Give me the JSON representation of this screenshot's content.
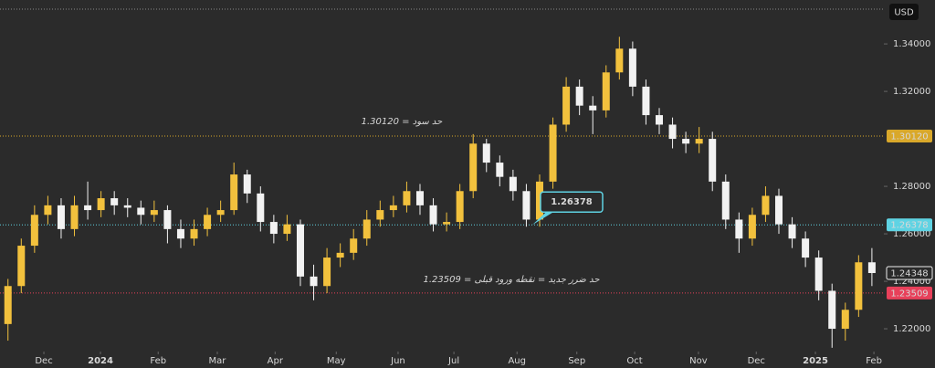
{
  "chart_data": {
    "type": "candlestick",
    "currency": "USD",
    "x": [
      0,
      1,
      2,
      3,
      4,
      5,
      6,
      7,
      8,
      9,
      10,
      11,
      12,
      13,
      14,
      15,
      16,
      17,
      18,
      19,
      20,
      21,
      22,
      23,
      24,
      25,
      26,
      27,
      28,
      29,
      30,
      31,
      32,
      33,
      34,
      35,
      36,
      37,
      38,
      39,
      40,
      41,
      42,
      43,
      44,
      45,
      46,
      47,
      48,
      49,
      50,
      51,
      52,
      53,
      54,
      55,
      56,
      57,
      58,
      59,
      60,
      61,
      62,
      63,
      64,
      65
    ],
    "open": [
      1.222,
      1.238,
      1.255,
      1.268,
      1.272,
      1.262,
      1.272,
      1.27,
      1.275,
      1.272,
      1.271,
      1.268,
      1.27,
      1.262,
      1.258,
      1.262,
      1.268,
      1.27,
      1.285,
      1.277,
      1.265,
      1.26,
      1.264,
      1.242,
      1.238,
      1.25,
      1.252,
      1.258,
      1.266,
      1.27,
      1.272,
      1.278,
      1.272,
      1.264,
      1.265,
      1.278,
      1.298,
      1.29,
      1.284,
      1.278,
      1.266,
      1.282,
      1.306,
      1.322,
      1.314,
      1.312,
      1.328,
      1.338,
      1.322,
      1.31,
      1.306,
      1.3,
      1.298,
      1.3,
      1.282,
      1.266,
      1.258,
      1.268,
      1.276,
      1.264,
      1.258,
      1.25,
      1.236,
      1.22,
      1.228,
      1.248
    ],
    "high": [
      1.241,
      1.258,
      1.272,
      1.276,
      1.275,
      1.276,
      1.282,
      1.278,
      1.278,
      1.275,
      1.274,
      1.274,
      1.272,
      1.266,
      1.266,
      1.271,
      1.274,
      1.29,
      1.287,
      1.28,
      1.268,
      1.268,
      1.266,
      1.247,
      1.254,
      1.256,
      1.262,
      1.27,
      1.274,
      1.276,
      1.282,
      1.281,
      1.275,
      1.269,
      1.281,
      1.302,
      1.3,
      1.293,
      1.287,
      1.281,
      1.285,
      1.309,
      1.326,
      1.325,
      1.318,
      1.331,
      1.343,
      1.341,
      1.325,
      1.313,
      1.309,
      1.303,
      1.305,
      1.303,
      1.285,
      1.269,
      1.271,
      1.28,
      1.279,
      1.267,
      1.261,
      1.253,
      1.239,
      1.231,
      1.251,
      1.254
    ],
    "low": [
      1.215,
      1.235,
      1.252,
      1.264,
      1.258,
      1.259,
      1.266,
      1.267,
      1.268,
      1.267,
      1.264,
      1.265,
      1.256,
      1.254,
      1.255,
      1.259,
      1.265,
      1.268,
      1.273,
      1.261,
      1.256,
      1.257,
      1.238,
      1.232,
      1.235,
      1.246,
      1.249,
      1.255,
      1.263,
      1.267,
      1.269,
      1.268,
      1.261,
      1.261,
      1.262,
      1.275,
      1.286,
      1.28,
      1.274,
      1.263,
      1.263,
      1.279,
      1.303,
      1.31,
      1.302,
      1.309,
      1.325,
      1.318,
      1.306,
      1.302,
      1.296,
      1.294,
      1.294,
      1.278,
      1.262,
      1.252,
      1.255,
      1.265,
      1.26,
      1.254,
      1.246,
      1.232,
      1.212,
      1.215,
      1.225,
      1.238
    ],
    "close": [
      1.238,
      1.255,
      1.268,
      1.272,
      1.262,
      1.272,
      1.27,
      1.275,
      1.272,
      1.271,
      1.268,
      1.27,
      1.262,
      1.258,
      1.262,
      1.268,
      1.27,
      1.285,
      1.277,
      1.265,
      1.26,
      1.264,
      1.242,
      1.238,
      1.25,
      1.252,
      1.258,
      1.266,
      1.27,
      1.272,
      1.278,
      1.272,
      1.264,
      1.265,
      1.278,
      1.298,
      1.29,
      1.284,
      1.278,
      1.266,
      1.282,
      1.306,
      1.322,
      1.314,
      1.312,
      1.328,
      1.338,
      1.322,
      1.31,
      1.306,
      1.3,
      1.298,
      1.3,
      1.282,
      1.266,
      1.258,
      1.268,
      1.276,
      1.264,
      1.258,
      1.25,
      1.236,
      1.22,
      1.228,
      1.248,
      1.24348
    ],
    "up_color": "#f2c13d",
    "down_color": "#f2f2f2",
    "xlim": [
      -0.6,
      65.9
    ],
    "ylim": [
      1.2104,
      1.3585
    ],
    "xticks": [
      {
        "value": 2.7,
        "label": "Dec"
      },
      {
        "value": 6.96,
        "label": "2024"
      },
      {
        "value": 11.3,
        "label": "Feb"
      },
      {
        "value": 15.75,
        "label": "Mar"
      },
      {
        "value": 20.1,
        "label": "Apr"
      },
      {
        "value": 24.7,
        "label": "May"
      },
      {
        "value": 29.35,
        "label": "Jun"
      },
      {
        "value": 33.55,
        "label": "Jul"
      },
      {
        "value": 38.3,
        "label": "Aug"
      },
      {
        "value": 42.8,
        "label": "Sep"
      },
      {
        "value": 47.15,
        "label": "Oct"
      },
      {
        "value": 51.95,
        "label": "Nov"
      },
      {
        "value": 56.3,
        "label": "Dec"
      },
      {
        "value": 60.75,
        "label": "2025"
      },
      {
        "value": 65.15,
        "label": "Feb"
      }
    ],
    "yticks": [
      {
        "value": 1.34,
        "label": "1.34000"
      },
      {
        "value": 1.32,
        "label": "1.32000"
      },
      {
        "value": 1.28,
        "label": "1.28000"
      },
      {
        "value": 1.26,
        "label": "1.26000"
      },
      {
        "value": 1.24,
        "label": "1.24000"
      },
      {
        "value": 1.22,
        "label": "1.22000"
      }
    ],
    "levels": [
      {
        "value": 1.3012,
        "label": "1.30120",
        "color": "#d9a82a"
      },
      {
        "value": 1.26378,
        "label": "1.26378",
        "color": "#5fd3e3"
      },
      {
        "value": 1.23509,
        "label": "1.23509",
        "color": "#e8405a"
      }
    ],
    "last_price": {
      "value": 1.24348,
      "label": "1.24348"
    },
    "annotations": [
      {
        "text": "حد سود = 1.30120",
        "color": "#f0b429"
      },
      {
        "text": "حد ضرر جدید = نقطه ورود قبلی = 1.23509",
        "color": "#e8406a"
      }
    ]
  }
}
